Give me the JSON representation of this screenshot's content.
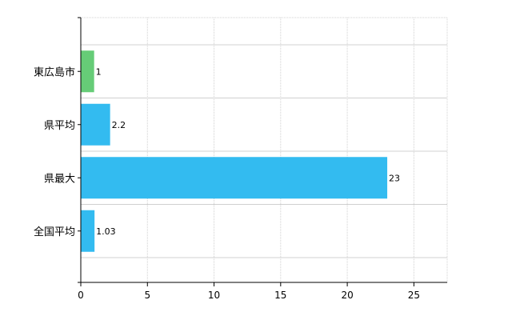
{
  "chart_data": {
    "type": "bar",
    "orientation": "horizontal",
    "categories": [
      "東広島市",
      "県平均",
      "県最大",
      "全国平均"
    ],
    "values": [
      1,
      2.2,
      23,
      1.03
    ],
    "data_labels": [
      "1",
      "2.2",
      "23",
      "1.03"
    ],
    "bar_colors": [
      "#66cc77",
      "#33bbf0",
      "#33bbf0",
      "#33bbf0"
    ],
    "xlim": [
      0,
      27.5
    ],
    "x_ticks": [
      0,
      5,
      10,
      15,
      20,
      25
    ],
    "x_tick_labels": [
      "0",
      "5",
      "10",
      "15",
      "20",
      "25"
    ],
    "grid": true,
    "title": "",
    "xlabel": "",
    "ylabel": ""
  }
}
